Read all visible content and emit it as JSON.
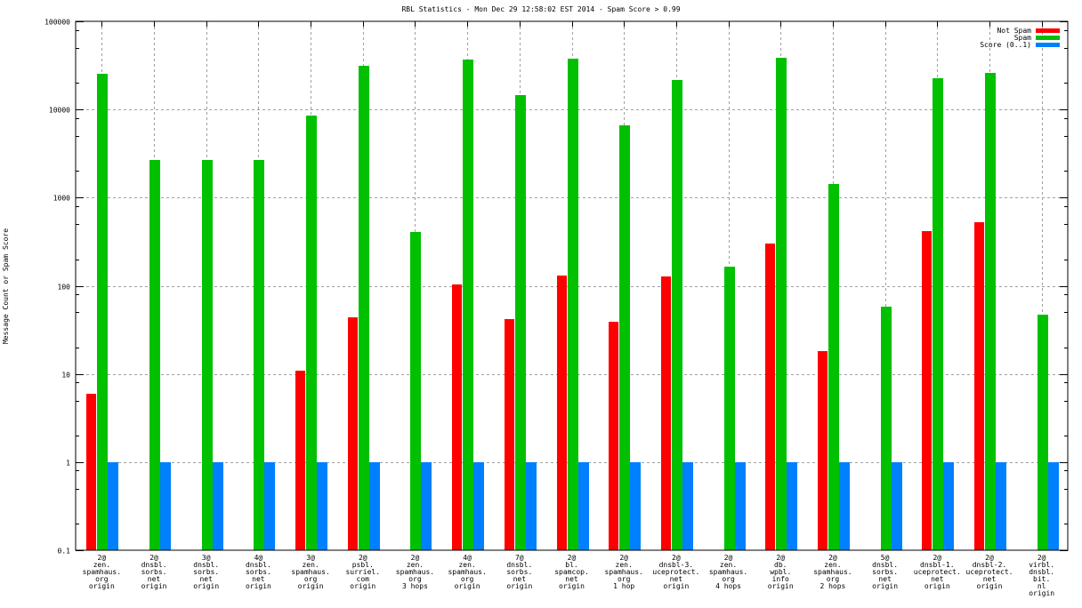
{
  "chart_data": {
    "type": "bar",
    "title": "RBL Statistics - Mon Dec 29 12:58:02 EST 2014 - Spam Score > 0.99",
    "xlabel": "",
    "ylabel": "Message Count or Spam Score",
    "yscale": "log",
    "ylim": [
      0.1,
      100000
    ],
    "yticks": [
      "0.1",
      "1",
      "10",
      "100",
      "1000",
      "10000",
      "100000"
    ],
    "ytick_values": [
      0.1,
      1,
      10,
      100,
      1000,
      10000,
      100000
    ],
    "grid": true,
    "legend_position": "top-right",
    "categories": [
      [
        "2@",
        "zen.",
        "spamhaus.",
        "org",
        "origin"
      ],
      [
        "2@",
        "dnsbl.",
        "sorbs.",
        "net",
        "origin"
      ],
      [
        "3@",
        "dnsbl.",
        "sorbs.",
        "net",
        "origin"
      ],
      [
        "4@",
        "dnsbl.",
        "sorbs.",
        "net",
        "origin"
      ],
      [
        "3@",
        "zen.",
        "spamhaus.",
        "org",
        "origin"
      ],
      [
        "2@",
        "psbl.",
        "surriel.",
        "com",
        "origin"
      ],
      [
        "2@",
        "zen.",
        "spamhaus.",
        "org",
        "3 hops"
      ],
      [
        "4@",
        "zen.",
        "spamhaus.",
        "org",
        "origin"
      ],
      [
        "7@",
        "dnsbl.",
        "sorbs.",
        "net",
        "origin"
      ],
      [
        "2@",
        "bl.",
        "spamcop.",
        "net",
        "origin"
      ],
      [
        "2@",
        "zen.",
        "spamhaus.",
        "org",
        "1 hop"
      ],
      [
        "2@",
        "dnsbl-3.",
        "uceprotect.",
        "net",
        "origin"
      ],
      [
        "2@",
        "zen.",
        "spamhaus.",
        "org",
        "4 hops"
      ],
      [
        "2@",
        "db.",
        "wpbl.",
        "info",
        "origin"
      ],
      [
        "2@",
        "zen.",
        "spamhaus.",
        "org",
        "2 hops"
      ],
      [
        "5@",
        "dnsbl.",
        "sorbs.",
        "net",
        "origin"
      ],
      [
        "2@",
        "dnsbl-1.",
        "uceprotect.",
        "net",
        "origin"
      ],
      [
        "2@",
        "dnsbl-2.",
        "uceprotect.",
        "net",
        "origin"
      ],
      [
        "2@",
        "virbl.",
        "dnsbl.",
        "bit.",
        "nl",
        "origin"
      ]
    ],
    "series": [
      {
        "name": "Not Spam",
        "color": "#ff0000",
        "values": [
          6,
          0,
          0,
          0,
          11,
          44,
          0,
          103,
          42,
          130,
          39,
          127,
          0,
          300,
          18,
          0,
          420,
          520,
          0
        ]
      },
      {
        "name": "Spam",
        "color": "#00c000",
        "values": [
          25400,
          2700,
          2700,
          2700,
          8500,
          31000,
          410,
          37000,
          14600,
          38000,
          6600,
          21500,
          165,
          39000,
          1430,
          58,
          22500,
          26000,
          47
        ]
      },
      {
        "name": "Score (0..1)",
        "color": "#0080ff",
        "values": [
          1,
          1,
          1,
          1,
          1,
          1,
          1,
          1,
          1,
          1,
          1,
          1,
          1,
          1,
          1,
          1,
          1,
          1,
          1
        ]
      }
    ]
  }
}
